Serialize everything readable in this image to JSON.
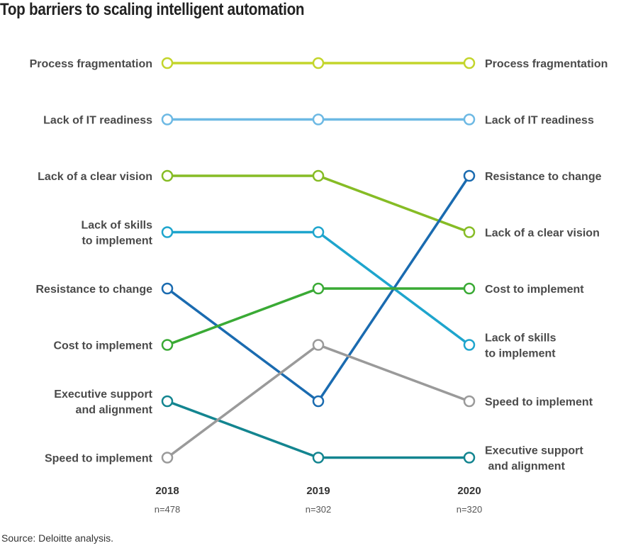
{
  "title": "Top barriers to scaling intelligent automation",
  "source": "Source: Deloitte analysis.",
  "chart_data": {
    "type": "line",
    "subtype": "bump-rank",
    "title": "Top barriers to scaling intelligent automation",
    "x": [
      "2018",
      "2019",
      "2020"
    ],
    "sample_sizes": [
      "n=478",
      "n=302",
      "n=320"
    ],
    "rank_direction": "1 = top barrier",
    "grid": false,
    "series": [
      {
        "name": "Process fragmentation",
        "label_lines": [
          "Process fragmentation"
        ],
        "color": "#c3d52b",
        "ranks": [
          1,
          1,
          1
        ]
      },
      {
        "name": "Lack of IT readiness",
        "label_lines": [
          "Lack of IT readiness"
        ],
        "color": "#6db9e4",
        "ranks": [
          2,
          2,
          2
        ]
      },
      {
        "name": "Lack of a clear vision",
        "label_lines": [
          "Lack of a clear vision"
        ],
        "color": "#86bc25",
        "ranks": [
          3,
          3,
          4
        ]
      },
      {
        "name": "Lack of skills to implement",
        "label_lines": [
          "Lack of skills",
          "to implement"
        ],
        "color": "#1ea5cd",
        "ranks": [
          4,
          4,
          6
        ]
      },
      {
        "name": "Resistance to change",
        "label_lines": [
          "Resistance to change"
        ],
        "color": "#1a6bb0",
        "ranks": [
          5,
          7,
          3
        ]
      },
      {
        "name": "Cost to implement",
        "label_lines": [
          "Cost to implement"
        ],
        "color": "#3aaa35",
        "ranks": [
          6,
          5,
          5
        ]
      },
      {
        "name": "Executive support and alignment",
        "label_lines": [
          "Executive support",
          "and alignment"
        ],
        "color": "#138590",
        "ranks": [
          7,
          8,
          8
        ]
      },
      {
        "name": "Speed to implement",
        "label_lines": [
          "Speed to implement"
        ],
        "color": "#9a9a9a",
        "ranks": [
          8,
          6,
          7
        ]
      }
    ],
    "left_labels_order": [
      "Process fragmentation",
      "Lack of IT readiness",
      "Lack of a clear vision",
      "Lack of skills to implement",
      "Resistance to change",
      "Cost to implement",
      "Executive support and alignment",
      "Speed to implement"
    ],
    "right_labels": [
      {
        "lines": [
          "Process fragmentation"
        ]
      },
      {
        "lines": [
          "Lack of IT readiness"
        ]
      },
      {
        "lines": [
          "Resistance to change"
        ]
      },
      {
        "lines": [
          "Lack of a clear vision"
        ]
      },
      {
        "lines": [
          "Cost to implement"
        ]
      },
      {
        "lines": [
          "Lack of skills",
          "to implement"
        ]
      },
      {
        "lines": [
          "Speed to implement"
        ]
      },
      {
        "lines": [
          "Executive support",
          " and alignment"
        ]
      }
    ]
  }
}
